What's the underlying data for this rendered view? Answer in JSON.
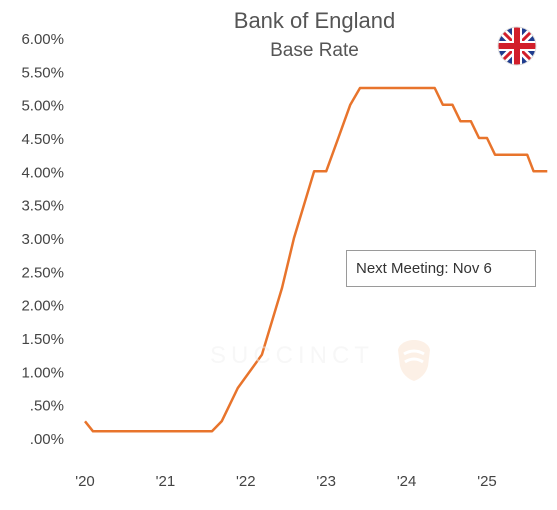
{
  "chart_data": {
    "type": "line",
    "title": "Bank of England",
    "subtitle": "Base Rate",
    "xlabel": "",
    "ylabel": "",
    "y_tick_labels": [
      "6.00%",
      "5.50%",
      "5.00%",
      "4.50%",
      "4.00%",
      "3.50%",
      "3.00%",
      "2.50%",
      "2.00%",
      "1.50%",
      "1.00%",
      ".50%",
      ".00%"
    ],
    "y_tick_values": [
      6.0,
      5.5,
      5.0,
      4.5,
      4.0,
      3.5,
      3.0,
      2.5,
      2.0,
      1.5,
      1.0,
      0.5,
      0.0
    ],
    "x_tick_labels": [
      "'20",
      "'21",
      "'22",
      "'23",
      "'24",
      "'25"
    ],
    "x_tick_values": [
      2020,
      2021,
      2022,
      2023,
      2024,
      2025
    ],
    "ylim": [
      0,
      6
    ],
    "xlim": [
      2019.87,
      2025.75
    ],
    "grid": false,
    "legend": "none",
    "annotation": "Next Meeting: Nov 6",
    "watermark": "SUCCINCT",
    "series": [
      {
        "color": "#e8742c",
        "x": [
          2020.0,
          2020.1,
          2020.25,
          2021.0,
          2021.58,
          2021.7,
          2021.9,
          2022.2,
          2022.45,
          2022.6,
          2022.85,
          2023.0,
          2023.15,
          2023.3,
          2023.42,
          2023.5,
          2024.0,
          2024.35,
          2024.45,
          2024.57,
          2024.67,
          2024.8,
          2024.9,
          2025.0,
          2025.1,
          2025.2,
          2025.5,
          2025.58,
          2025.66,
          2025.75
        ],
        "values": [
          0.25,
          0.1,
          0.1,
          0.1,
          0.1,
          0.25,
          0.75,
          1.25,
          2.25,
          3.0,
          4.0,
          4.0,
          4.5,
          5.0,
          5.25,
          5.25,
          5.25,
          5.25,
          5.0,
          5.0,
          4.75,
          4.75,
          4.5,
          4.5,
          4.25,
          4.25,
          4.25,
          4.0,
          4.0,
          4.0
        ]
      }
    ]
  },
  "flag_icon": "union-jack-flag-icon",
  "colors": {
    "line": "#e8742c",
    "text": "#555555",
    "axis_text": "#444444"
  }
}
